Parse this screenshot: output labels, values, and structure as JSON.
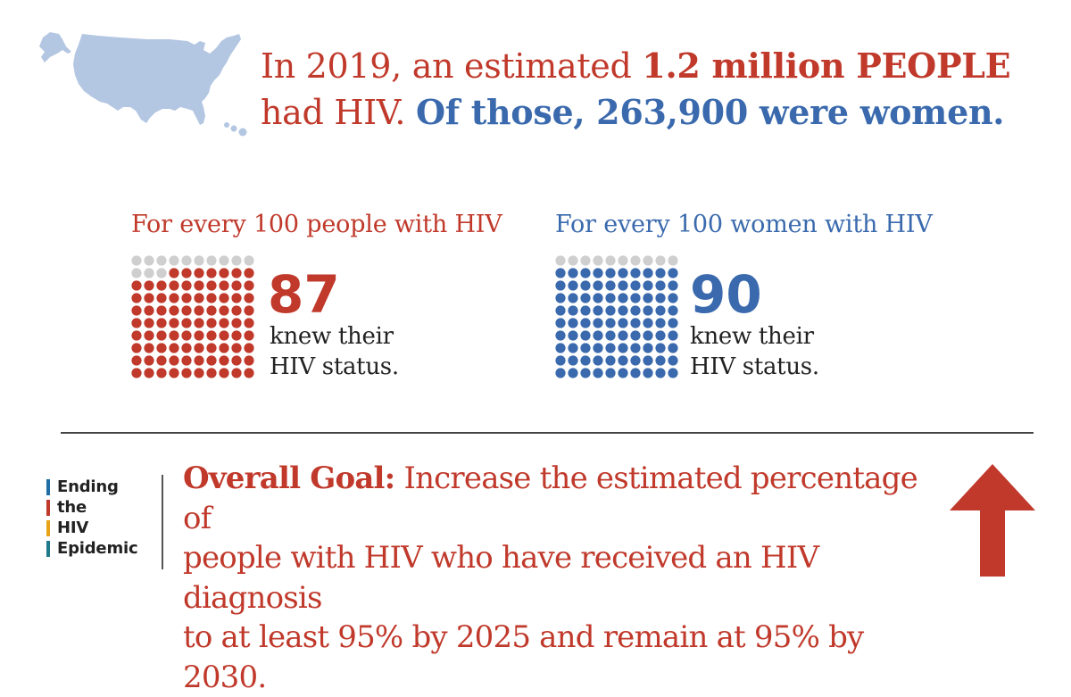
{
  "headline": {
    "part1": "In 2019, an estimated ",
    "part2": "1.2 million PEOPLE",
    "part3": "had HIV. ",
    "part4": "Of those, 263,900 were women."
  },
  "people_panel": {
    "title": "For every 100 people with HIV",
    "value": 87,
    "value_text": "87",
    "caption_line1": "knew their",
    "caption_line2": "HIV status.",
    "total": 100
  },
  "women_panel": {
    "title": "For every 100 women with HIV",
    "value": 90,
    "value_text": "90",
    "caption_line1": "knew their",
    "caption_line2": "HIV status.",
    "total": 100
  },
  "logo": {
    "line1": "Ending",
    "line2": "the",
    "line3": "HIV",
    "line4": "Epidemic"
  },
  "goal": {
    "lead": "Overall Goal:",
    "line1_rest": " Increase the estimated percentage of",
    "line2": "people with HIV who have received an HIV diagnosis",
    "line3": "to at least 95% by 2025 and remain at 95% by 2030."
  },
  "colors": {
    "red": "#c0392b",
    "blue": "#3a6aad",
    "gray_dot": "#cfcfcf",
    "map": "#b3c6e2",
    "logo_blue": "#1f6fa6",
    "logo_red": "#c0392b",
    "logo_yellow": "#e8a317",
    "logo_teal": "#1f7a8c"
  },
  "icons": {
    "map": "us-map-icon",
    "arrow": "up-arrow-icon"
  }
}
